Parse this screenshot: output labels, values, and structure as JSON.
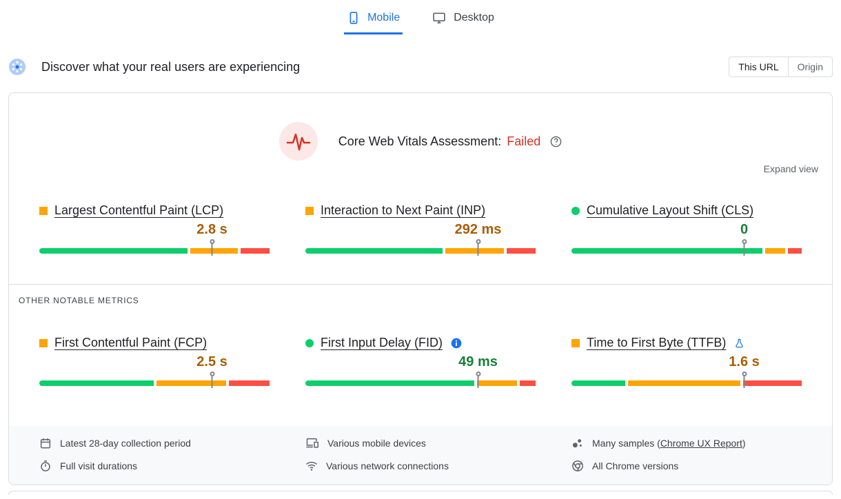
{
  "tabs": [
    {
      "id": "mobile",
      "label": "Mobile",
      "icon": "mobile-icon",
      "active": true
    },
    {
      "id": "desktop",
      "label": "Desktop",
      "icon": "desktop-icon",
      "active": false
    }
  ],
  "field_header": {
    "icon": "crux-logo-icon",
    "title": "Discover what your real users are experiencing",
    "scope_toggle": [
      {
        "id": "this-url",
        "label": "This URL",
        "selected": true
      },
      {
        "id": "origin",
        "label": "Origin",
        "selected": false
      }
    ]
  },
  "assessment": {
    "icon": "pulse-icon",
    "title": "Core Web Vitals Assessment:",
    "status": "Failed",
    "status_color": "#d93025",
    "help_icon": "help-icon",
    "expand_label": "Expand view"
  },
  "section_label": "OTHER NOTABLE METRICS",
  "metrics": {
    "core": [
      {
        "id": "lcp",
        "label": "Largest Contentful Paint (LCP)",
        "bullet": "square-orange",
        "value": "2.8 s",
        "value_color": "#aa5d00",
        "distribution": [
          66,
          21,
          13
        ],
        "marker_percent": 75
      },
      {
        "id": "inp",
        "label": "Interaction to Next Paint (INP)",
        "bullet": "square-orange",
        "value": "292 ms",
        "value_color": "#aa5d00",
        "distribution": [
          61,
          26,
          13
        ],
        "marker_percent": 75
      },
      {
        "id": "cls",
        "label": "Cumulative Layout Shift (CLS)",
        "bullet": "circle-green",
        "value": "0",
        "value_color": "#188038",
        "distribution": [
          85,
          9,
          6
        ],
        "marker_percent": 75
      }
    ],
    "other": [
      {
        "id": "fcp",
        "label": "First Contentful Paint (FCP)",
        "bullet": "square-orange",
        "value": "2.5 s",
        "value_color": "#aa5d00",
        "distribution": [
          51,
          31,
          18
        ],
        "marker_percent": 75
      },
      {
        "id": "fid",
        "label": "First Input Delay (FID)",
        "bullet": "circle-green",
        "value": "49 ms",
        "value_color": "#188038",
        "distribution": [
          75,
          18,
          7
        ],
        "marker_percent": 75,
        "trailing_icon": "info-icon"
      },
      {
        "id": "ttfb",
        "label": "Time to First Byte (TTFB)",
        "bullet": "square-orange",
        "value": "1.6 s",
        "value_color": "#aa5d00",
        "distribution": [
          24,
          50,
          26
        ],
        "marker_percent": 75,
        "trailing_icon": "flask-icon"
      }
    ]
  },
  "footer": {
    "items": [
      {
        "icon": "calendar-icon",
        "text": "Latest 28-day collection period"
      },
      {
        "icon": "devices-icon",
        "text": "Various mobile devices"
      },
      {
        "icon": "samples-icon",
        "prefix": "Many samples (",
        "link": "Chrome UX Report",
        "suffix": ")"
      },
      {
        "icon": "stopwatch-icon",
        "text": "Full visit durations"
      },
      {
        "icon": "network-icon",
        "text": "Various network connections"
      },
      {
        "icon": "chrome-icon",
        "text": "All Chrome versions"
      }
    ]
  },
  "colors": {
    "bar_good": "#0cce6b",
    "bar_ni": "#ffa400",
    "bar_poor": "#ff4e42",
    "good_text": "#188038",
    "ni_text": "#aa5d00",
    "accent_blue": "#1a73e8",
    "failed_red": "#d93025"
  }
}
